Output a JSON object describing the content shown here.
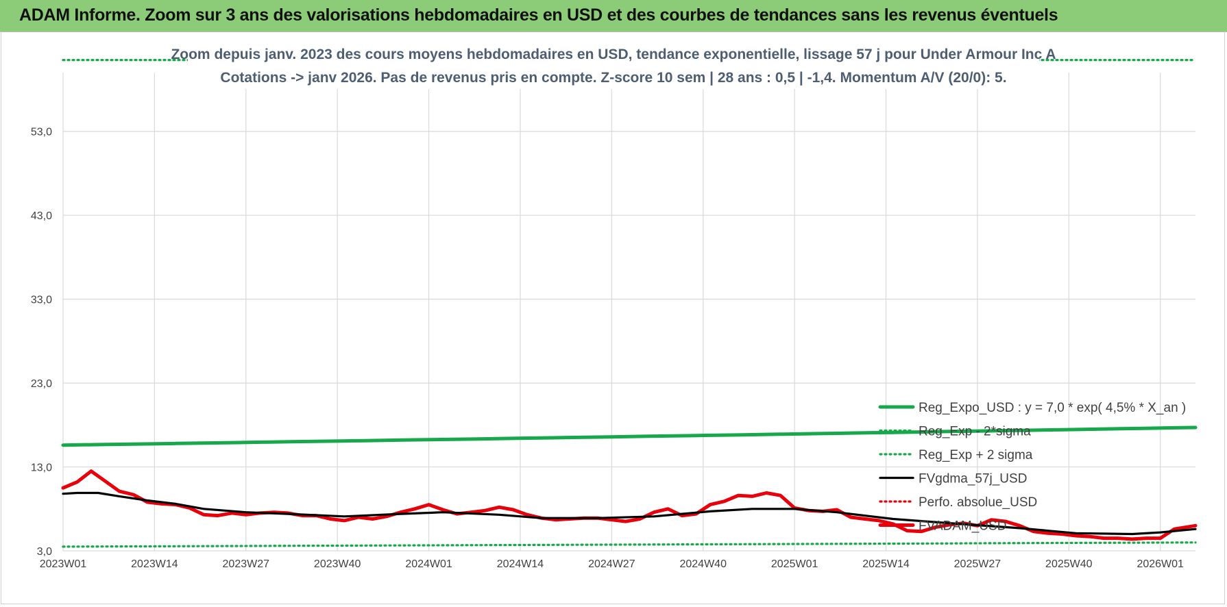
{
  "header": {
    "title": "ADAM Informe. Zoom sur 3 ans des valorisations hebdomadaires en USD et des courbes de tendances sans les revenus éventuels"
  },
  "chart_data": {
    "type": "line",
    "title": "Zoom depuis janv. 2023 des cours moyens hebdomadaires en USD, tendance exponentielle, lissage 57 j pour Under Armour Inc A",
    "subtitle": "Cotations -> janv 2026. Pas de revenus pris en compte. Z-score 10 sem | 28 ans : 0,5 | -1,4. Momentum A/V (20/0): 5.",
    "xlabel": "",
    "ylabel": "",
    "ylim": [
      3.0,
      60.0
    ],
    "yticks": [
      "3,0",
      "13,0",
      "23,0",
      "33,0",
      "43,0",
      "53,0"
    ],
    "ytick_values": [
      3,
      13,
      23,
      33,
      43,
      53
    ],
    "xticks": [
      "2023W01",
      "2023W14",
      "2023W27",
      "2023W40",
      "2024W01",
      "2024W14",
      "2024W27",
      "2024W40",
      "2025W01",
      "2025W14",
      "2025W27",
      "2025W40",
      "2026W01"
    ],
    "xtick_index": [
      0,
      13,
      26,
      39,
      52,
      65,
      78,
      91,
      104,
      117,
      130,
      143,
      156
    ],
    "x_range": [
      0,
      161
    ],
    "grid": true,
    "legend_position": "bottom-right",
    "series": [
      {
        "name": "Reg_Expo_USD : y = 7,0 * exp( 4,5% * X_an )",
        "color": "#17a84b",
        "style": "solid-thick",
        "x": [
          0,
          161
        ],
        "values": [
          15.6,
          17.7
        ],
        "interp": "exp"
      },
      {
        "name": "Reg_Exp - 2*sigma",
        "color": "#17a84b",
        "style": "dotted",
        "x": [
          0,
          161
        ],
        "values": [
          3.5,
          4.0
        ],
        "interp": "exp"
      },
      {
        "name": "Reg_Exp + 2 sigma",
        "color": "#17a84b",
        "style": "dotted",
        "x": [
          0,
          161
        ],
        "values": [
          61.5,
          61.5
        ],
        "interp": "linear"
      },
      {
        "name": "FVgdma_57j_USD",
        "color": "#000000",
        "style": "solid",
        "x": [
          0,
          2,
          5,
          8,
          12,
          16,
          20,
          26,
          32,
          40,
          48,
          54,
          62,
          68,
          76,
          84,
          92,
          98,
          104,
          110,
          118,
          126,
          136,
          144,
          152,
          156,
          161
        ],
        "values": [
          9.8,
          9.9,
          9.9,
          9.5,
          9.0,
          8.6,
          8.0,
          7.6,
          7.4,
          7.1,
          7.4,
          7.6,
          7.3,
          6.9,
          6.9,
          7.1,
          7.7,
          8.0,
          8.0,
          7.6,
          6.8,
          6.3,
          5.7,
          5.1,
          5.0,
          5.2,
          5.6
        ]
      },
      {
        "name": "Perfo. absolue_USD",
        "color": "#e8000b",
        "style": "dotted",
        "x": [],
        "values": []
      },
      {
        "name": "FVADAM_USD",
        "color": "#e8000b",
        "style": "solid-thick",
        "x": [
          0,
          2,
          4,
          6,
          8,
          10,
          12,
          14,
          16,
          18,
          20,
          22,
          24,
          26,
          28,
          30,
          32,
          34,
          36,
          38,
          40,
          42,
          44,
          46,
          48,
          50,
          52,
          54,
          56,
          58,
          60,
          62,
          64,
          66,
          68,
          70,
          72,
          74,
          76,
          78,
          80,
          82,
          84,
          86,
          88,
          90,
          92,
          94,
          96,
          98,
          100,
          102,
          104,
          106,
          108,
          110,
          112,
          114,
          116,
          118,
          120,
          122,
          124,
          126,
          128,
          130,
          132,
          134,
          136,
          138,
          140,
          142,
          144,
          146,
          148,
          150,
          152,
          154,
          156,
          158,
          161
        ],
        "values": [
          10.5,
          11.2,
          12.5,
          11.3,
          10.1,
          9.7,
          8.8,
          8.6,
          8.5,
          8.1,
          7.3,
          7.2,
          7.5,
          7.3,
          7.5,
          7.6,
          7.5,
          7.2,
          7.2,
          6.8,
          6.6,
          7.0,
          6.8,
          7.1,
          7.6,
          8.0,
          8.5,
          7.9,
          7.4,
          7.6,
          7.8,
          8.2,
          7.9,
          7.3,
          6.9,
          6.7,
          6.8,
          6.9,
          6.9,
          6.7,
          6.5,
          6.8,
          7.6,
          8.0,
          7.2,
          7.4,
          8.5,
          8.9,
          9.6,
          9.5,
          9.9,
          9.6,
          8.1,
          7.8,
          7.7,
          7.9,
          7.0,
          6.8,
          6.6,
          6.2,
          5.4,
          5.3,
          5.8,
          6.1,
          6.3,
          6.0,
          6.7,
          6.5,
          6.0,
          5.3,
          5.1,
          5.0,
          4.8,
          4.7,
          4.5,
          4.5,
          4.4,
          4.5,
          4.5,
          5.6,
          6.0
        ]
      }
    ]
  }
}
